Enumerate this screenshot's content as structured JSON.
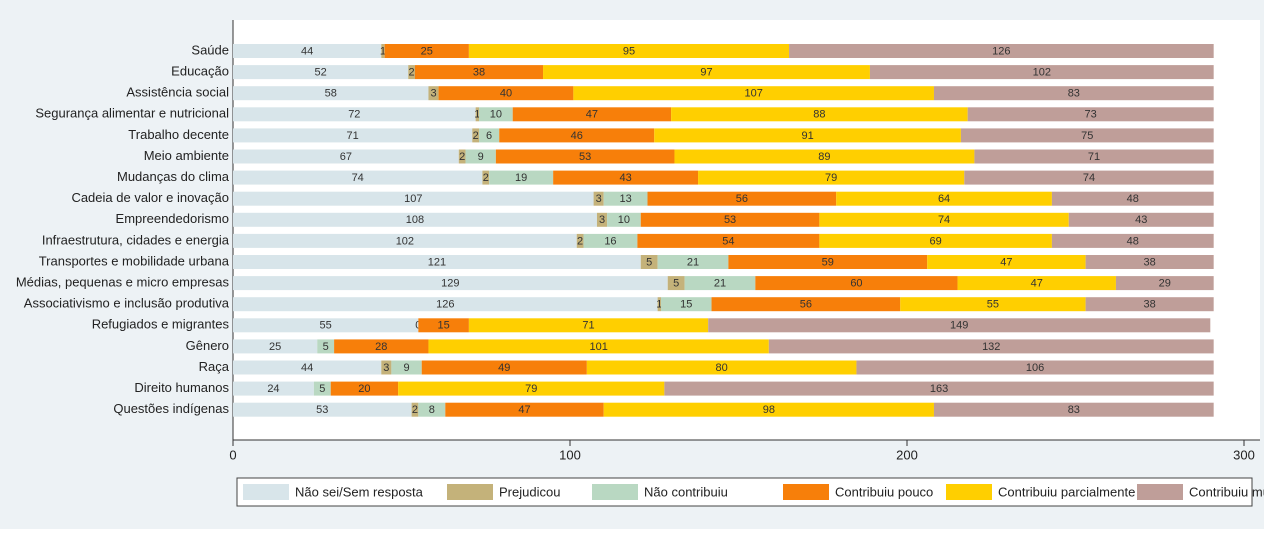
{
  "chart_data": {
    "type": "stacked-bar-horizontal",
    "categories": [
      "Saúde",
      "Educação",
      "Assistência social",
      "Segurança alimentar e nutricional",
      "Trabalho decente",
      "Meio ambiente",
      "Mudanças do clima",
      "Cadeia de valor e inovação",
      "Empreendedorismo",
      "Infraestrutura, cidades e energia",
      "Transportes e mobilidade urbana",
      "Médias, pequenas e micro empresas",
      "Associativismo e inclusão produtiva",
      "Refugiados e migrantes",
      "Gênero",
      "Raça",
      "Direito humanos",
      "Questões indígenas"
    ],
    "series": [
      {
        "name": "Não sei/Sem resposta",
        "color": "#d8e5ea",
        "values": [
          44,
          52,
          58,
          72,
          71,
          67,
          74,
          107,
          108,
          102,
          121,
          129,
          126,
          55,
          25,
          44,
          24,
          53
        ]
      },
      {
        "name": "Prejudicou",
        "color": "#c4b27a",
        "values": [
          1,
          2,
          3,
          1,
          2,
          2,
          2,
          3,
          3,
          2,
          5,
          5,
          1,
          0,
          null,
          3,
          null,
          2
        ]
      },
      {
        "name": "Não contribuiu",
        "color": "#b9d8c2",
        "values": [
          null,
          null,
          null,
          10,
          6,
          9,
          19,
          13,
          10,
          16,
          21,
          21,
          15,
          null,
          5,
          9,
          5,
          8
        ]
      },
      {
        "name": "Contribuiu pouco",
        "color": "#f77f0a",
        "values": [
          25,
          38,
          40,
          47,
          46,
          53,
          43,
          56,
          53,
          54,
          59,
          60,
          56,
          15,
          28,
          49,
          20,
          47
        ]
      },
      {
        "name": "Contribuiu parcialmente",
        "color": "#ffcf00",
        "values": [
          95,
          97,
          107,
          88,
          91,
          89,
          79,
          64,
          74,
          69,
          47,
          47,
          55,
          71,
          101,
          80,
          79,
          98
        ]
      },
      {
        "name": "Contribuiu muito",
        "color": "#bf9e99",
        "values": [
          126,
          102,
          83,
          73,
          75,
          71,
          74,
          48,
          43,
          48,
          38,
          29,
          38,
          149,
          132,
          106,
          163,
          83
        ]
      }
    ],
    "xlim": [
      0,
      300
    ],
    "xticks": [
      0,
      100,
      200,
      300
    ]
  }
}
